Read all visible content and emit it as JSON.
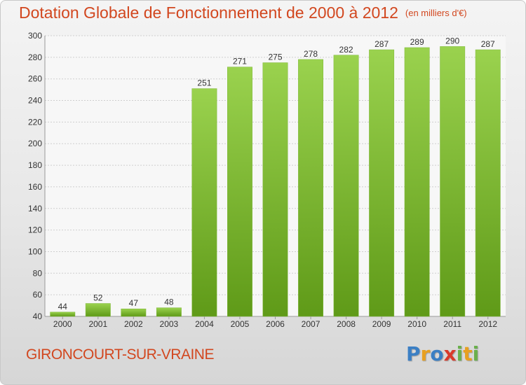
{
  "header": {
    "title": "Dotation Globale de Fonctionnement de 2000 à 2012",
    "subtitle": "(en milliers d'€)"
  },
  "footer": {
    "commune": "GIRONCOURT-SUR-VRAINE",
    "logo": [
      "P",
      "r",
      "o",
      "x",
      "i",
      "t",
      "i"
    ]
  },
  "colors": {
    "title": "#d2471f",
    "bar_top": "#9ad24e",
    "bar_bottom": "#5f9a18",
    "logo": [
      "#3b7fc4",
      "#e8a020",
      "#3b7fc4",
      "#d93a2b",
      "#6ab04c",
      "#e8a020",
      "#6ab04c"
    ]
  },
  "chart_data": {
    "type": "bar",
    "title": "Dotation Globale de Fonctionnement de 2000 à 2012",
    "subtitle": "(en milliers d'€)",
    "categories": [
      "2000",
      "2001",
      "2002",
      "2003",
      "2004",
      "2005",
      "2006",
      "2007",
      "2008",
      "2009",
      "2010",
      "2011",
      "2012"
    ],
    "values": [
      44,
      52,
      47,
      48,
      251,
      271,
      275,
      278,
      282,
      287,
      289,
      290,
      287
    ],
    "ylim": [
      40,
      300
    ],
    "yticks": [
      40,
      60,
      80,
      100,
      120,
      140,
      160,
      180,
      200,
      220,
      240,
      260,
      280,
      300
    ],
    "grid": true,
    "legend": "none"
  }
}
